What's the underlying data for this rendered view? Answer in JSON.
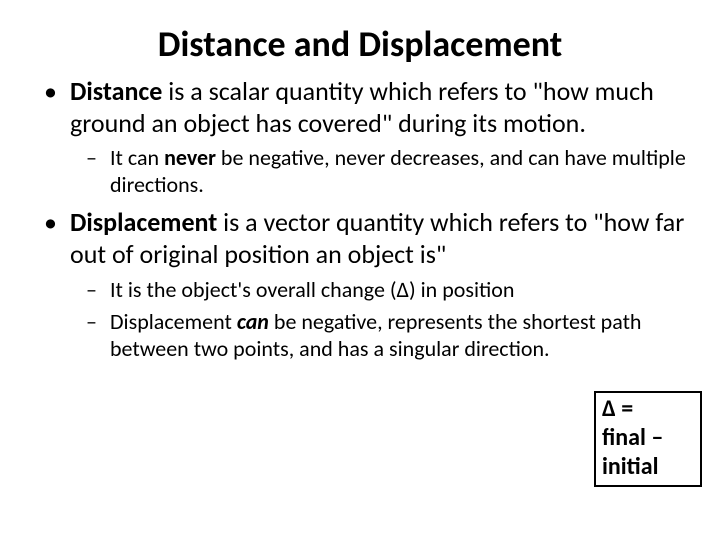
{
  "title": "Distance and Displacement",
  "bullets": {
    "distance": {
      "term": "Distance",
      "rest": " is a scalar quantity which refers to \"how much ground an object has covered\" during its motion.",
      "sub1_a": "It can ",
      "sub1_b": "never",
      "sub1_c": " be negative, never decreases, and can have multiple directions."
    },
    "displacement": {
      "term": "Displacement",
      "rest": " is a vector quantity which refers to \"how far out of original position an object is\"",
      "sub1": "It is the object's overall change (∆) in position",
      "sub2_a": "Displacement ",
      "sub2_b": "can",
      "sub2_c": " be negative, represents the shortest path between two points, and has a singular direction."
    }
  },
  "formula": {
    "line1": "∆ =",
    "line2": "final –",
    "line3": "initial"
  },
  "colors": {
    "background": "#ffffff",
    "text": "#000000",
    "border": "#000000"
  }
}
